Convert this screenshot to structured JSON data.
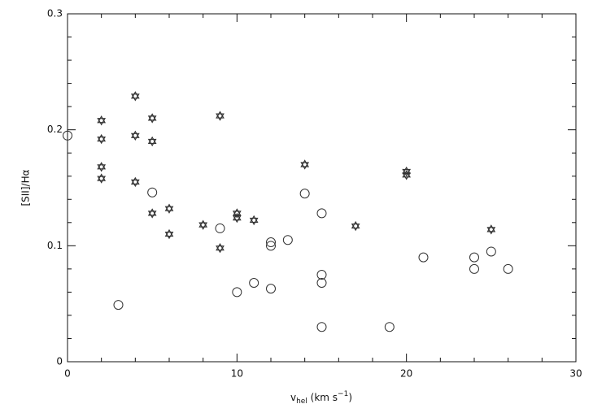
{
  "chart_data": {
    "type": "scatter",
    "x_label": [
      "v",
      "hel",
      " (km  s",
      "−1",
      ")"
    ],
    "y_label": "[SII]/Hα",
    "xlim": [
      0,
      30
    ],
    "xticks": [
      0,
      10,
      20,
      30
    ],
    "x_minor_ticks": [
      2,
      4,
      6,
      8,
      12,
      14,
      16,
      18,
      22,
      24,
      26,
      28
    ],
    "ylim": [
      0,
      0.3
    ],
    "yticks": [
      0,
      0.1,
      0.2,
      0.3
    ],
    "y_minor_ticks": [
      0.02,
      0.04,
      0.06,
      0.08,
      0.12,
      0.14,
      0.16,
      0.18,
      0.22,
      0.24,
      0.26,
      0.28
    ],
    "series": [
      {
        "marker": "star",
        "color": "#333",
        "x": [
          2,
          2,
          2,
          2,
          4,
          4,
          4,
          5,
          5,
          5,
          6,
          6,
          8,
          9,
          9,
          10,
          10,
          11,
          14,
          17,
          20,
          20,
          25
        ],
        "values": [
          0.208,
          0.192,
          0.168,
          0.158,
          0.229,
          0.195,
          0.155,
          0.21,
          0.19,
          0.128,
          0.132,
          0.11,
          0.118,
          0.212,
          0.098,
          0.128,
          0.124,
          0.122,
          0.17,
          0.117,
          0.164,
          0.161,
          0.114
        ]
      },
      {
        "marker": "circle",
        "color": "#333",
        "x": [
          0,
          3,
          5,
          9,
          10,
          11,
          12,
          12,
          12,
          13,
          14,
          15,
          15,
          15,
          15,
          19,
          21,
          24,
          24,
          25,
          26
        ],
        "values": [
          0.195,
          0.049,
          0.146,
          0.115,
          0.06,
          0.068,
          0.103,
          0.1,
          0.063,
          0.105,
          0.145,
          0.128,
          0.075,
          0.068,
          0.03,
          0.03,
          0.09,
          0.09,
          0.08,
          0.095,
          0.08
        ]
      }
    ]
  }
}
